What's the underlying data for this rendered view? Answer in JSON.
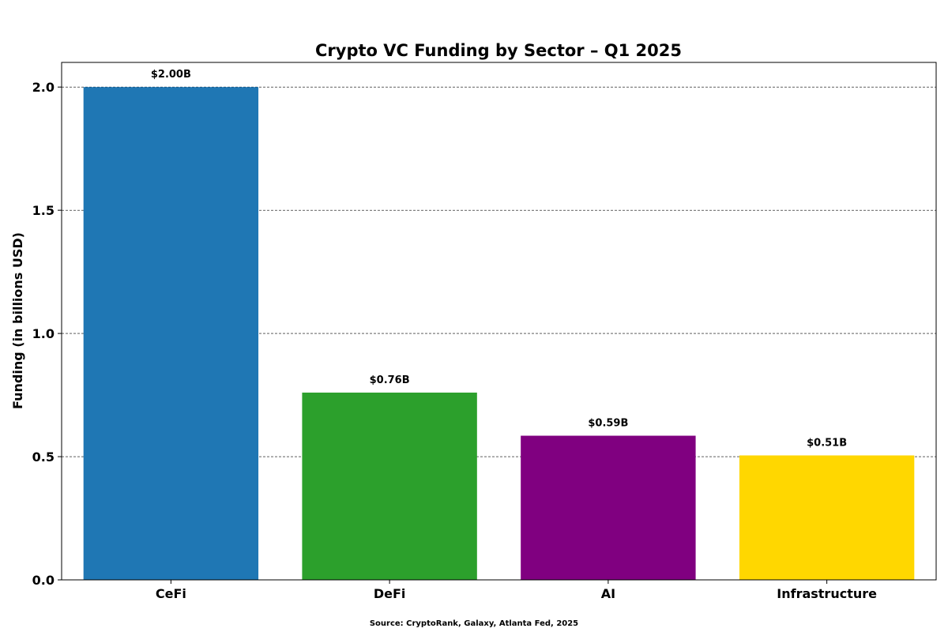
{
  "chart_data": {
    "type": "bar",
    "title": "Crypto VC Funding by Sector – Q1 2025",
    "xlabel": "",
    "ylabel": "Funding (in billions USD)",
    "categories": [
      "CeFi",
      "DeFi",
      "AI",
      "Infrastructure"
    ],
    "values": [
      2.0,
      0.76,
      0.585,
      0.505
    ],
    "data_labels": [
      "$2.00B",
      "$0.76B",
      "$0.59B",
      "$0.51B"
    ],
    "colors": [
      "#1f77b4",
      "#2ca02c",
      "#800080",
      "#ffd700"
    ],
    "ylim": [
      0,
      2.1
    ],
    "yticks": [
      0.0,
      0.5,
      1.0,
      1.5,
      2.0
    ],
    "ytick_labels": [
      "0.0",
      "0.5",
      "1.0",
      "1.5",
      "2.0"
    ],
    "grid": "y-axis, dashed",
    "legend": "none"
  },
  "footer": {
    "source": "Source: CryptoRank, Galaxy, Atlanta Fed, 2025"
  }
}
